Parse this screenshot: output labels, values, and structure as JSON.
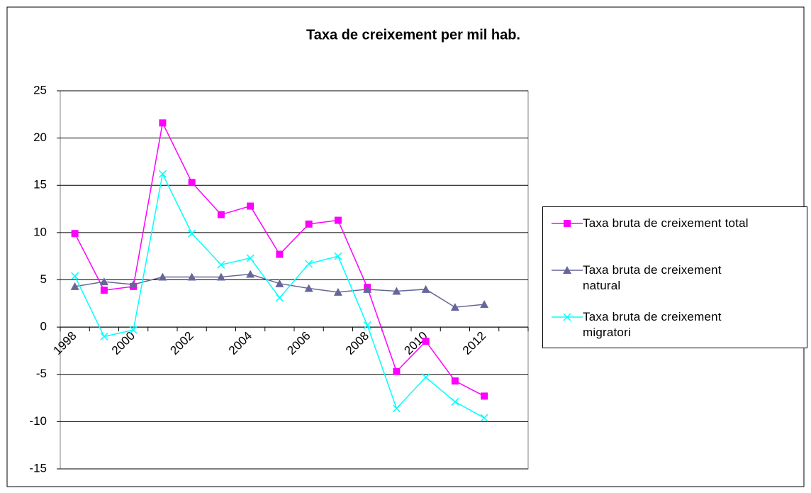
{
  "chart_data": {
    "type": "line",
    "title": "Taxa de creixement per mil hab.",
    "categories": [
      "1998",
      null,
      "2000",
      null,
      "2002",
      null,
      "2004",
      null,
      "2006",
      null,
      "2008",
      null,
      "2010",
      null,
      "2012",
      null
    ],
    "series": [
      {
        "name": "Taxa bruta de creixement total",
        "color": "#ff00ff",
        "marker": "square",
        "values": [
          9.9,
          3.9,
          4.3,
          21.6,
          15.3,
          11.9,
          12.8,
          7.7,
          10.9,
          11.3,
          4.2,
          -4.7,
          -1.5,
          -5.7,
          -7.3,
          null
        ]
      },
      {
        "name": "Taxa bruta de creixement natural",
        "color": "#666699",
        "marker": "triangle",
        "values": [
          4.3,
          4.8,
          4.5,
          5.3,
          5.3,
          5.3,
          5.6,
          4.6,
          4.1,
          3.7,
          4.0,
          3.8,
          4.0,
          2.1,
          2.4,
          null
        ]
      },
      {
        "name": "Taxa bruta de creixement migratori",
        "color": "#00ffff",
        "marker": "x",
        "values": [
          5.4,
          -1.0,
          -0.3,
          16.2,
          9.9,
          6.6,
          7.3,
          3.1,
          6.7,
          7.5,
          0.2,
          -8.6,
          -5.3,
          -7.9,
          -9.6,
          null
        ]
      }
    ],
    "ylim": [
      -15,
      25
    ],
    "yticks": [
      -15,
      -10,
      -5,
      0,
      5,
      10,
      15,
      20,
      25
    ],
    "grid": true,
    "legend": "right"
  }
}
